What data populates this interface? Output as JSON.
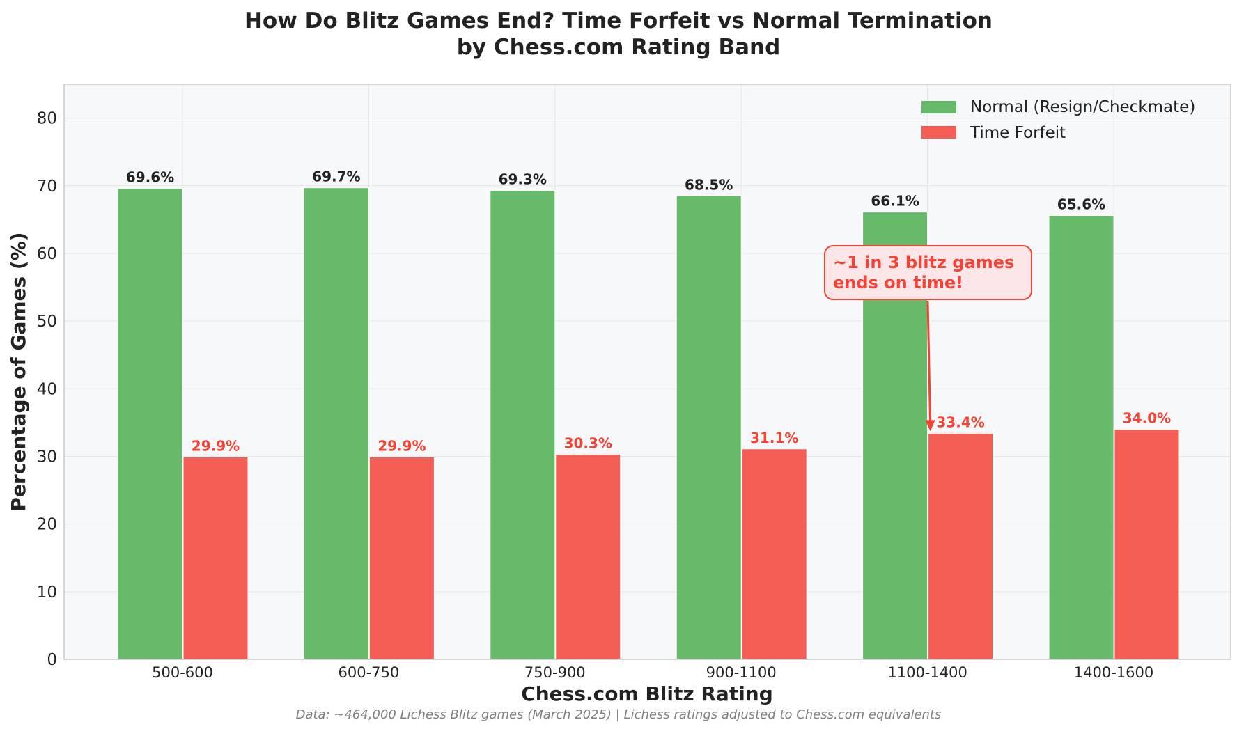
{
  "chart_data": {
    "type": "bar",
    "title_line1": "How Do Blitz Games End? Time Forfeit vs Normal Termination",
    "title_line2": "by Chess.com Rating Band",
    "xlabel": "Chess.com Blitz Rating",
    "ylabel": "Percentage of Games (%)",
    "ylim": [
      0,
      85
    ],
    "yticks": [
      "0",
      "10",
      "20",
      "30",
      "40",
      "50",
      "60",
      "70",
      "80"
    ],
    "categories": [
      "500-600",
      "600-750",
      "750-900",
      "900-1100",
      "1100-1400",
      "1400-1600"
    ],
    "series": [
      {
        "name": "Normal (Resign/Checkmate)",
        "color": "#4caf50",
        "label_color": "#222222",
        "values": [
          69.6,
          69.7,
          69.3,
          68.5,
          66.1,
          65.6
        ],
        "labels": [
          "69.6%",
          "69.7%",
          "69.3%",
          "68.5%",
          "66.1%",
          "65.6%"
        ]
      },
      {
        "name": "Time Forfeit",
        "color": "#f44336",
        "label_color": "#f44336",
        "values": [
          29.9,
          29.9,
          30.3,
          31.1,
          33.4,
          34.0
        ],
        "labels": [
          "29.9%",
          "29.9%",
          "30.3%",
          "31.1%",
          "33.4%",
          "34.0%"
        ]
      }
    ],
    "grid": true,
    "legend_position": "top-right",
    "annotation": {
      "line1": "~1 in 3 blitz games",
      "line2": "ends on time!",
      "target_category": "1100-1400",
      "target_value": 33.4,
      "color": "#f44336",
      "box_fill": "#fde6e7"
    },
    "footnote": "Data: ~464,000 Lichess Blitz games (March 2025) | Lichess ratings adjusted to Chess.com equivalents",
    "colors": {
      "plot_background": "#f7f8fa",
      "grid": "#e6e6e6",
      "axis": "#c8c8c8",
      "text": "#222222",
      "footnote": "#808080"
    }
  }
}
